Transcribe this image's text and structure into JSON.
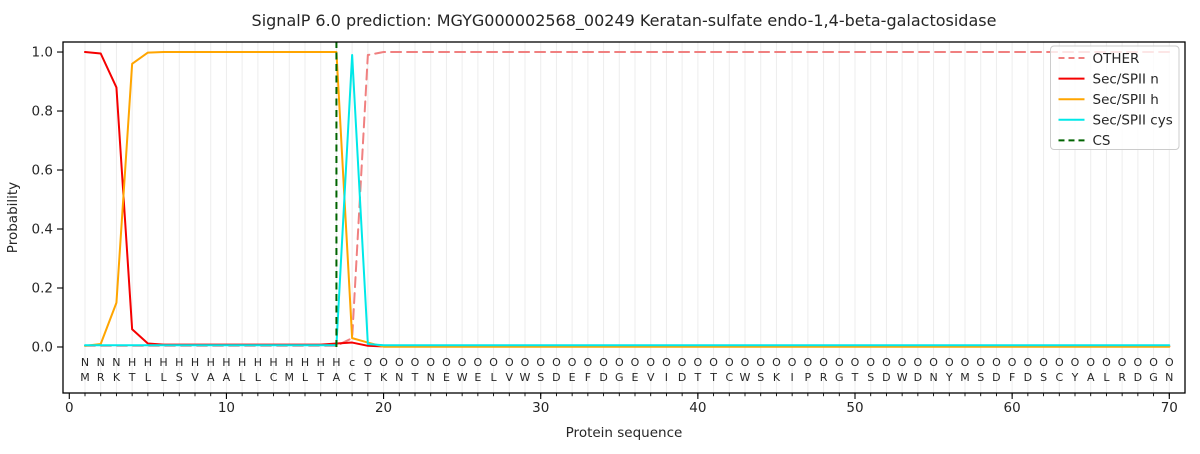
{
  "title": "SignalP 6.0 prediction: MGYG000002568_00249 Keratan-sulfate endo-1,4-beta-galactosidase",
  "chart_data": {
    "type": "line",
    "title": "SignalP 6.0 prediction: MGYG000002568_00249 Keratan-sulfate endo-1,4-beta-galactosidase",
    "xlabel": "Protein sequence",
    "ylabel": "Probability",
    "xlim": [
      -0.4,
      71
    ],
    "ylim": [
      -0.156,
      1.034
    ],
    "xticks": [
      0,
      10,
      20,
      30,
      40,
      50,
      60,
      70
    ],
    "yticks": [
      0.0,
      0.2,
      0.4,
      0.6,
      0.8,
      1.0
    ],
    "grid": "vertical-every-position",
    "grid_color": "#ededed",
    "legend_position": "upper-right",
    "x_start": 1,
    "series": [
      {
        "name": "OTHER",
        "color": "#f08080",
        "dash": [
          10,
          6
        ],
        "values": [
          0.004,
          0.004,
          0.004,
          0.004,
          0.004,
          0.004,
          0.004,
          0.004,
          0.004,
          0.004,
          0.004,
          0.004,
          0.004,
          0.004,
          0.004,
          0.004,
          0.004,
          0.03,
          0.99,
          1,
          1,
          1,
          1,
          1,
          1,
          1,
          1,
          1,
          1,
          1,
          1,
          1,
          1,
          1,
          1,
          1,
          1,
          1,
          1,
          1,
          1,
          1,
          1,
          1,
          1,
          1,
          1,
          1,
          1,
          1,
          1,
          1,
          1,
          1,
          1,
          1,
          1,
          1,
          1,
          1,
          1,
          1,
          1,
          1,
          1,
          1,
          1,
          1,
          1,
          1
        ]
      },
      {
        "name": "Sec/SPII n",
        "color": "#f50000",
        "dash": null,
        "values": [
          1,
          0.995,
          0.88,
          0.06,
          0.012,
          0.008,
          0.008,
          0.008,
          0.008,
          0.008,
          0.008,
          0.008,
          0.008,
          0.008,
          0.008,
          0.008,
          0.012,
          0.015,
          0.004,
          0.002,
          0.002,
          0.002,
          0.002,
          0.002,
          0.002,
          0.002,
          0.002,
          0.002,
          0.002,
          0.002,
          0.002,
          0.002,
          0.002,
          0.002,
          0.002,
          0.002,
          0.002,
          0.002,
          0.002,
          0.002,
          0.002,
          0.002,
          0.002,
          0.002,
          0.002,
          0.002,
          0.002,
          0.002,
          0.002,
          0.002,
          0.002,
          0.002,
          0.002,
          0.002,
          0.002,
          0.002,
          0.002,
          0.002,
          0.002,
          0.002,
          0.002,
          0.002,
          0.002,
          0.002,
          0.002,
          0.002,
          0.002,
          0.002,
          0.002,
          0.002
        ]
      },
      {
        "name": "Sec/SPII h",
        "color": "#ffa500",
        "dash": null,
        "values": [
          0.004,
          0.01,
          0.15,
          0.96,
          0.998,
          1,
          1,
          1,
          1,
          1,
          1,
          1,
          1,
          1,
          1,
          1,
          1,
          0.03,
          0.015,
          0.001,
          0.001,
          0.001,
          0.001,
          0.001,
          0.001,
          0.001,
          0.001,
          0.001,
          0.001,
          0.001,
          0.001,
          0.001,
          0.001,
          0.001,
          0.001,
          0.001,
          0.001,
          0.001,
          0.001,
          0.001,
          0.001,
          0.001,
          0.001,
          0.001,
          0.001,
          0.001,
          0.001,
          0.001,
          0.001,
          0.001,
          0.001,
          0.001,
          0.001,
          0.001,
          0.001,
          0.001,
          0.001,
          0.001,
          0.001,
          0.001,
          0.001,
          0.001,
          0.001,
          0.001,
          0.001,
          0.001,
          0.001,
          0.001,
          0.001,
          0.001
        ]
      },
      {
        "name": "Sec/SPII cys",
        "color": "#00e8e8",
        "dash": null,
        "values": [
          0.006,
          0.006,
          0.006,
          0.006,
          0.006,
          0.006,
          0.006,
          0.006,
          0.006,
          0.006,
          0.006,
          0.006,
          0.006,
          0.006,
          0.006,
          0.006,
          0.006,
          0.99,
          0.01,
          0.006,
          0.006,
          0.006,
          0.006,
          0.006,
          0.006,
          0.006,
          0.006,
          0.006,
          0.006,
          0.006,
          0.006,
          0.006,
          0.006,
          0.006,
          0.006,
          0.006,
          0.006,
          0.006,
          0.006,
          0.006,
          0.006,
          0.006,
          0.006,
          0.006,
          0.006,
          0.006,
          0.006,
          0.006,
          0.006,
          0.006,
          0.006,
          0.006,
          0.006,
          0.006,
          0.006,
          0.006,
          0.006,
          0.006,
          0.006,
          0.006,
          0.006,
          0.006,
          0.006,
          0.006,
          0.006,
          0.006,
          0.006,
          0.006,
          0.006,
          0.006
        ]
      }
    ],
    "cs_marker": {
      "name": "CS",
      "color": "#006400",
      "dash": [
        7,
        4.5
      ],
      "position": 17
    },
    "sequence": "MRKTLLSVAALLCMLTACTKNTNEWELVWSDEFDGEVIDTTCWSKIPRGTSDWDNYMSDFDSCYALRDGN",
    "region_labels": "NNNHHHHHHHHHHHHHHcOOOOOOOOOOOOOOOOOOOOOOOOOOOOOOOOOOOOOOOOOOOOOOOOOOOO",
    "label_colors": {
      "N": "#f50000",
      "H": "#ffa500",
      "c": "#00dede",
      "O": "#8c8c8c"
    },
    "sequence_color": "#2e2e2e",
    "legend_entries": [
      "OTHER",
      "Sec/SPII n",
      "Sec/SPII h",
      "Sec/SPII cys",
      "CS"
    ]
  }
}
